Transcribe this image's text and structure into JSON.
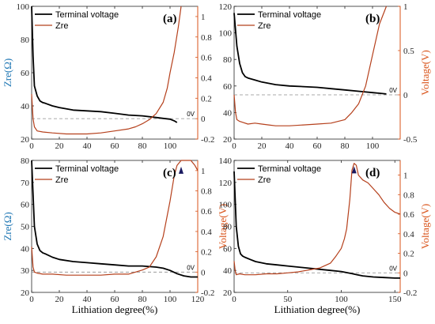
{
  "colors": {
    "voltage": "#000000",
    "zre": "#b5401c",
    "left_axis": "#1f77b4",
    "right_axis": "#d95319",
    "reference_line": "#8c8c8c"
  },
  "shared": {
    "xlabel": "Lithiation degree(%)",
    "ylabel_left": "Zre(Ω)",
    "ylabel_right": "Voltage(V)",
    "reference_label": "0V",
    "legend": [
      "Terminal voltage",
      "Zre"
    ]
  },
  "chart_data": [
    {
      "id": "a",
      "type": "line",
      "panel_label": "(a)",
      "xlim": [
        0,
        120
      ],
      "xticks": [
        "0",
        "20",
        "40",
        "60",
        "80",
        "100"
      ],
      "ylim_left": [
        20,
        100
      ],
      "yticks_left": [
        "20",
        "40",
        "60",
        "80",
        "100"
      ],
      "ylim_right": [
        -0.2,
        1.1
      ],
      "yticks_right": [
        "-0.2",
        "0",
        "0.2",
        "0.4",
        "0.6",
        "0.8",
        "1"
      ],
      "show_left_label": true,
      "show_right_label": false,
      "show_xlabel": false,
      "reference_voltage": 0,
      "series": [
        {
          "name": "Terminal voltage",
          "axis": "left",
          "x": [
            0,
            1,
            2,
            4,
            6,
            8,
            10,
            15,
            20,
            30,
            40,
            50,
            60,
            70,
            80,
            90,
            95,
            100,
            103,
            105
          ],
          "y": [
            100,
            70,
            52,
            46,
            43,
            42,
            41.5,
            40,
            39,
            37.5,
            37,
            36.5,
            35.5,
            34.5,
            34,
            33,
            32.5,
            32,
            31,
            30
          ]
        },
        {
          "name": "Zre",
          "axis": "right",
          "x": [
            0,
            1,
            2,
            4,
            8,
            15,
            25,
            40,
            50,
            60,
            70,
            75,
            80,
            85,
            90,
            95,
            98,
            100,
            103,
            106,
            108
          ],
          "y": [
            0.24,
            0.0,
            -0.08,
            -0.12,
            -0.13,
            -0.14,
            -0.15,
            -0.15,
            -0.14,
            -0.12,
            -0.1,
            -0.08,
            -0.05,
            -0.01,
            0.05,
            0.16,
            0.3,
            0.45,
            0.65,
            0.9,
            1.1
          ]
        }
      ]
    },
    {
      "id": "b",
      "type": "line",
      "panel_label": "(b)",
      "xlim": [
        0,
        120
      ],
      "xticks": [
        "0",
        "20",
        "40",
        "60",
        "80",
        "100"
      ],
      "ylim_left": [
        20,
        120
      ],
      "yticks_left": [
        "20",
        "40",
        "60",
        "80",
        "100",
        "120"
      ],
      "ylim_right": [
        -0.5,
        1
      ],
      "yticks_right": [
        "-0.5",
        "0",
        "0.5",
        "1"
      ],
      "show_left_label": false,
      "show_right_label": true,
      "show_xlabel": false,
      "reference_voltage": 0,
      "series": [
        {
          "name": "Terminal voltage",
          "axis": "left",
          "x": [
            0,
            2,
            4,
            6,
            8,
            10,
            15,
            20,
            30,
            40,
            50,
            60,
            70,
            80,
            90,
            100,
            105,
            110
          ],
          "y": [
            115,
            90,
            77,
            70,
            67,
            66,
            64.5,
            63,
            61,
            60,
            59.5,
            59,
            58,
            57,
            56,
            55,
            54.5,
            54
          ]
        },
        {
          "name": "Zre",
          "axis": "right",
          "x": [
            0,
            1,
            2,
            4,
            6,
            10,
            15,
            20,
            25,
            30,
            40,
            50,
            60,
            70,
            80,
            85,
            90,
            95,
            100,
            105,
            110
          ],
          "y": [
            0.0,
            -0.2,
            -0.28,
            -0.3,
            -0.31,
            -0.33,
            -0.32,
            -0.33,
            -0.34,
            -0.35,
            -0.35,
            -0.34,
            -0.33,
            -0.32,
            -0.28,
            -0.2,
            -0.1,
            0.1,
            0.45,
            0.8,
            1.0
          ]
        }
      ]
    },
    {
      "id": "c",
      "type": "line",
      "panel_label": "(c)",
      "xlim": [
        0,
        120
      ],
      "xticks": [
        "0",
        "20",
        "40",
        "60",
        "80",
        "100",
        "120"
      ],
      "ylim_left": [
        20,
        80
      ],
      "yticks_left": [
        "20",
        "30",
        "40",
        "50",
        "60",
        "70",
        "80"
      ],
      "ylim_right": [
        -0.2,
        1.1
      ],
      "yticks_right": [
        "-0.2",
        "0",
        "0.2",
        "0.4",
        "0.6",
        "0.8",
        "1"
      ],
      "show_left_label": true,
      "show_right_label": true,
      "show_xlabel": true,
      "reference_voltage": 0,
      "marker": {
        "x": 108,
        "y": 1.0
      },
      "series": [
        {
          "name": "Terminal voltage",
          "axis": "left",
          "x": [
            0,
            2,
            4,
            6,
            8,
            10,
            15,
            20,
            30,
            40,
            50,
            60,
            70,
            80,
            90,
            95,
            100,
            105,
            110,
            115,
            120
          ],
          "y": [
            80,
            50,
            42,
            39,
            38,
            37.5,
            36,
            35,
            34,
            33.5,
            33,
            32.5,
            32,
            32,
            31.5,
            31,
            30,
            28.5,
            27.5,
            27,
            27
          ]
        },
        {
          "name": "Zre",
          "axis": "right",
          "x": [
            0,
            1,
            2,
            4,
            8,
            15,
            25,
            40,
            50,
            60,
            70,
            75,
            80,
            85,
            90,
            95,
            100,
            103,
            105,
            108,
            110,
            115,
            118,
            120
          ],
          "y": [
            0.25,
            0.05,
            0.0,
            -0.01,
            -0.02,
            -0.02,
            -0.03,
            -0.03,
            -0.03,
            -0.02,
            -0.02,
            0.0,
            0.02,
            0.05,
            0.15,
            0.35,
            0.7,
            0.95,
            1.05,
            1.1,
            1.1,
            1.1,
            1.05,
            1.0
          ]
        }
      ]
    },
    {
      "id": "d",
      "type": "line",
      "panel_label": "(d)",
      "xlim": [
        0,
        155
      ],
      "xticks": [
        "0",
        "50",
        "100",
        "150"
      ],
      "ylim_left": [
        20,
        140
      ],
      "yticks_left": [
        "20",
        "40",
        "60",
        "80",
        "100",
        "120",
        "140"
      ],
      "ylim_right": [
        -0.2,
        1.15
      ],
      "yticks_right": [
        "-0.2",
        "0",
        "0.2",
        "0.4",
        "0.6",
        "0.8",
        "1"
      ],
      "show_left_label": false,
      "show_right_label": true,
      "show_xlabel": true,
      "reference_voltage": 0,
      "marker": {
        "x": 112,
        "y": 1.05
      },
      "series": [
        {
          "name": "Terminal voltage",
          "axis": "left",
          "x": [
            0,
            2,
            4,
            6,
            8,
            10,
            15,
            20,
            30,
            40,
            50,
            60,
            70,
            80,
            90,
            100,
            110,
            115,
            120,
            130,
            140,
            150,
            155
          ],
          "y": [
            130,
            80,
            62,
            55,
            53,
            52,
            50,
            48,
            46,
            45,
            44,
            43,
            42,
            41,
            40,
            39,
            37,
            36,
            35,
            34,
            33.5,
            33,
            33
          ]
        },
        {
          "name": "Zre",
          "axis": "right",
          "x": [
            0,
            1,
            2,
            5,
            10,
            20,
            30,
            40,
            50,
            60,
            70,
            80,
            90,
            95,
            100,
            103,
            105,
            108,
            110,
            112,
            114,
            116,
            120,
            125,
            130,
            135,
            140,
            145,
            150,
            155
          ],
          "y": [
            0.12,
            0.02,
            -0.02,
            -0.01,
            -0.02,
            -0.02,
            -0.01,
            -0.01,
            0.0,
            0.01,
            0.03,
            0.05,
            0.1,
            0.17,
            0.25,
            0.35,
            0.45,
            0.75,
            1.05,
            1.12,
            1.1,
            1.0,
            0.95,
            0.92,
            0.86,
            0.8,
            0.72,
            0.66,
            0.62,
            0.6
          ]
        }
      ]
    }
  ]
}
